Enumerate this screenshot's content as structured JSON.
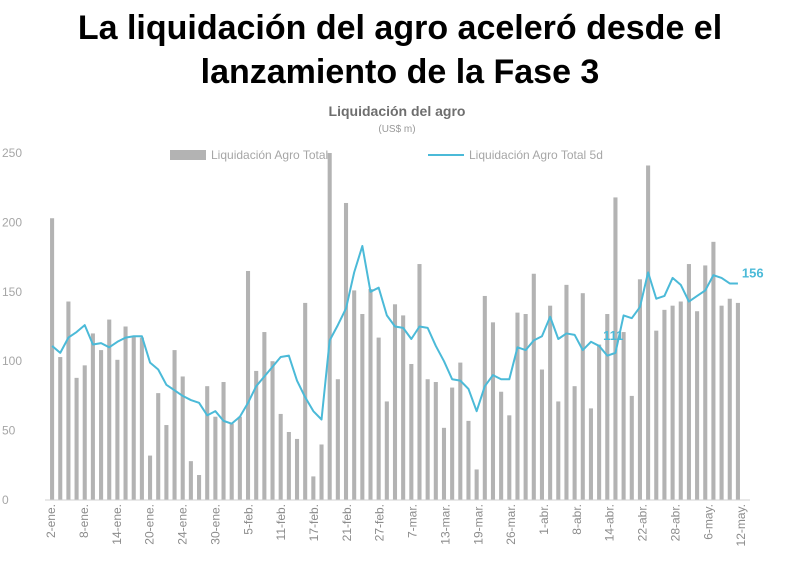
{
  "headline": {
    "line1": "La liquidación del agro aceleró desde el",
    "line2": "lanzamiento de la Fase 3"
  },
  "chart_data": {
    "type": "bar",
    "title": "Liquidación del agro",
    "subtitle": "(US$ m)",
    "ylim": [
      0,
      250
    ],
    "yticks": [
      0,
      50,
      100,
      150,
      200,
      250
    ],
    "grid": false,
    "legend_position": "top",
    "x_tick_labels": [
      "2-ene.",
      "8-ene.",
      "14-ene.",
      "20-ene.",
      "24-ene.",
      "30-ene.",
      "5-feb.",
      "11-feb.",
      "17-feb.",
      "21-feb.",
      "27-feb.",
      "7-mar.",
      "13-mar.",
      "19-mar.",
      "26-mar.",
      "1-abr.",
      "8-abr.",
      "14-abr.",
      "22-abr.",
      "28-abr.",
      "6-may.",
      "12-may."
    ],
    "series": [
      {
        "name": "Liquidación Agro Total",
        "kind": "bar",
        "color": "#b3b3b3",
        "values": [
          203,
          103,
          143,
          88,
          97,
          120,
          108,
          130,
          101,
          125,
          118,
          117,
          32,
          77,
          54,
          108,
          89,
          28,
          18,
          82,
          60,
          85,
          55,
          60,
          165,
          93,
          121,
          100,
          62,
          49,
          44,
          142,
          17,
          40,
          250,
          87,
          214,
          151,
          134,
          152,
          117,
          71,
          141,
          133,
          98,
          170,
          87,
          85,
          52,
          81,
          99,
          57,
          22,
          147,
          128,
          78,
          61,
          135,
          134,
          163,
          94,
          140,
          71,
          155,
          82,
          149,
          66,
          112,
          134,
          218,
          121,
          75,
          159,
          241,
          122,
          137,
          140,
          143,
          170,
          136,
          169,
          186,
          140,
          145,
          142
        ]
      },
      {
        "name": "Liquidación Agro Total 5d",
        "kind": "line",
        "color": "#4bbad8",
        "values": [
          111,
          106,
          117,
          121,
          126,
          112,
          113,
          110,
          114,
          117,
          118,
          118,
          99,
          94,
          83,
          79,
          75,
          72,
          70,
          61,
          64,
          57,
          55,
          60,
          70,
          82,
          89,
          96,
          103,
          104,
          86,
          74,
          64,
          58,
          115,
          126,
          138,
          164,
          183,
          150,
          153,
          133,
          125,
          124,
          116,
          125,
          124,
          111,
          100,
          87,
          86,
          80,
          64,
          82,
          90,
          87,
          87,
          110,
          108,
          115,
          118,
          132,
          116,
          120,
          119,
          108,
          114,
          111,
          104,
          106,
          133,
          131,
          139,
          164,
          145,
          147,
          160,
          155,
          143,
          147,
          151,
          162,
          160,
          156,
          156
        ]
      }
    ],
    "annotations": [
      {
        "label": "111",
        "series": "Liquidación Agro Total 5d",
        "index": 67
      },
      {
        "label": "156",
        "series": "Liquidación Agro Total 5d",
        "index": 84
      }
    ]
  }
}
